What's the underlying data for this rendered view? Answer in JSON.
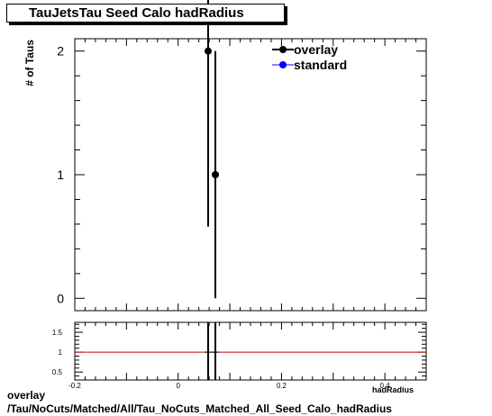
{
  "title": "TauJetsTau Seed Calo hadRadius",
  "footer": {
    "line1": "overlay",
    "line2": "/Tau/NoCuts/Matched/All/Tau_NoCuts_Matched_All_Seed_Calo_hadRadius"
  },
  "chart_data": [
    {
      "type": "scatter",
      "ylabel": "# of Taus",
      "xlim": [
        -0.2,
        0.48
      ],
      "ylim": [
        -0.1,
        2.1
      ],
      "yticks": [
        0,
        1,
        2
      ],
      "legend_position": "top-right",
      "series": [
        {
          "name": "overlay",
          "color": "#000000",
          "points": [
            {
              "x": 0.058,
              "y": 2,
              "err": 1.42
            },
            {
              "x": 0.072,
              "y": 1,
              "err": 1.0
            }
          ]
        },
        {
          "name": "standard",
          "color": "#0000ff",
          "points": []
        }
      ]
    },
    {
      "type": "scatter",
      "xlabel": "hadRadius",
      "xlim": [
        -0.2,
        0.48
      ],
      "ylim": [
        0.3,
        1.75
      ],
      "xticks": [
        -0.2,
        0,
        0.2,
        0.4
      ],
      "xtick_labels": [
        "-0.2",
        "0",
        "0.2",
        "0.4"
      ],
      "yticks": [
        0.5,
        1,
        1.5
      ],
      "ytick_labels": [
        "0.5",
        "1",
        "1.5"
      ],
      "reference_line": {
        "y": 1,
        "color": "#cc0000"
      },
      "series": [
        {
          "name": "ratio",
          "color": "#000000",
          "points": [
            {
              "x": 0.058,
              "y": 1
            },
            {
              "x": 0.072,
              "y": 1
            }
          ]
        }
      ]
    }
  ]
}
